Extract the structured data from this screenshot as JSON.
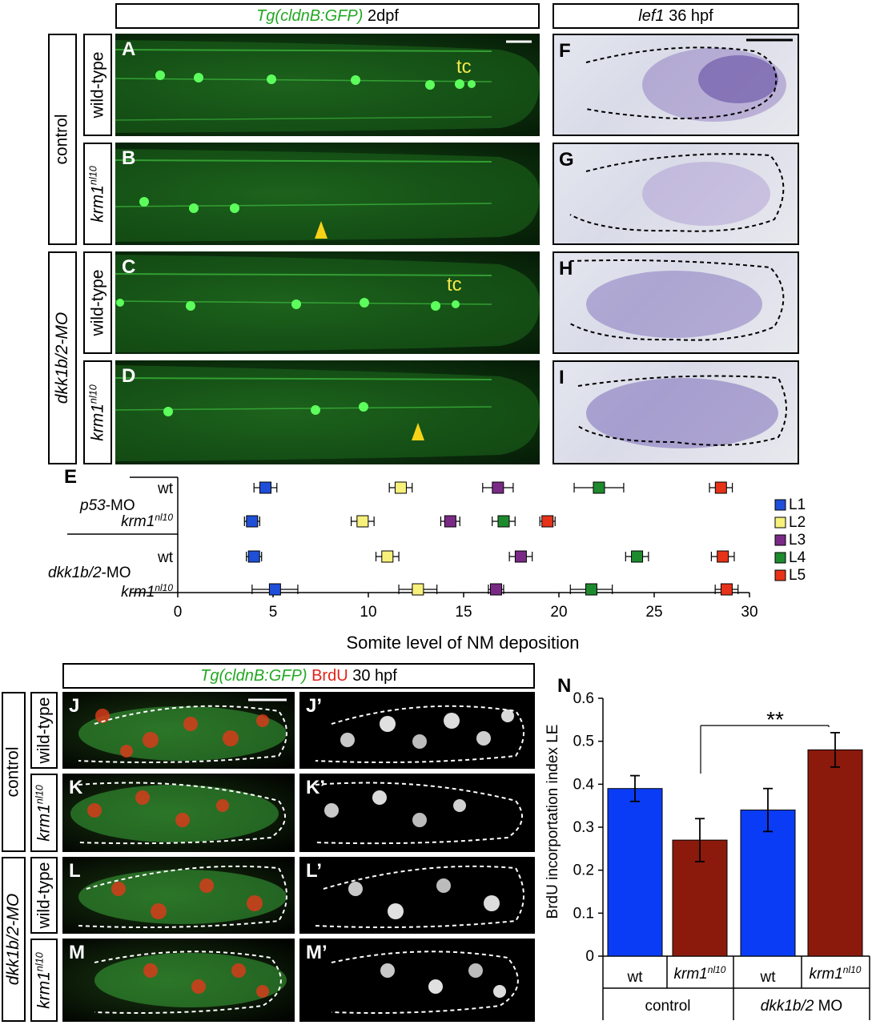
{
  "top": {
    "header_left_gene": "Tg(cldnB:GFP)",
    "header_left_stage": "2dpf",
    "header_right_gene": "lef1",
    "header_right_stage": "36 hpf",
    "group_control": "control",
    "group_mo": "dkk1b/2-MO",
    "row_wt": "wild-type",
    "row_mut": "krm1",
    "row_mut_sup": "nl10",
    "tc_label": "tc",
    "panel_letters": [
      "A",
      "B",
      "C",
      "D",
      "F",
      "G",
      "H",
      "I"
    ]
  },
  "panelE": {
    "letter": "E",
    "group1": "p53-MO",
    "group2": "dkk1b/2-MO",
    "row_wt": "wt",
    "row_mut": "krm1",
    "row_mut_sup": "nl10",
    "xlabel": "Somite level of NM deposition",
    "xticks": [
      0,
      5,
      10,
      15,
      20,
      25,
      30
    ],
    "legend": [
      "L1",
      "L2",
      "L3",
      "L4",
      "L5"
    ],
    "legend_colors": [
      "#1f4fd8",
      "#f7f07a",
      "#7a2a86",
      "#1e8a2e",
      "#e63218"
    ]
  },
  "bottom": {
    "header_gene": "Tg(cldnB:GFP)",
    "header_brdu": "BrdU",
    "header_stage": "30 hpf",
    "group_control": "control",
    "group_mo": "dkk1b/2-MO",
    "row_wt": "wild-type",
    "row_mut": "krm1",
    "row_mut_sup": "nl10",
    "panel_letters": [
      "J",
      "J’",
      "K",
      "K’",
      "L",
      "L’",
      "M",
      "M’"
    ]
  },
  "panelN": {
    "letter": "N",
    "ylabel": "BrdU incorportation index LE",
    "yticks": [
      "0",
      "0.1",
      "0.2",
      "0.3",
      "0.4",
      "0.5",
      "0.6"
    ],
    "bar_labels": [
      "wt",
      "krm1",
      "wt",
      "krm1"
    ],
    "bar_label_sup": "nl10",
    "group1": "control",
    "group2_gene": "dkk1b/2",
    "group2_suffix": "MO",
    "significance": "**"
  },
  "chart_data": [
    {
      "type": "scatter",
      "title": "",
      "xlabel": "Somite level of NM deposition",
      "ylabel": "",
      "xlim": [
        0,
        30
      ],
      "categories": [
        "p53-MO wt",
        "p53-MO krm1 nl10",
        "dkk1b/2-MO wt",
        "dkk1b/2-MO krm1 nl10"
      ],
      "series": [
        {
          "name": "L1",
          "color": "#1f4fd8",
          "values": [
            4.6,
            3.9,
            4.0,
            5.1
          ],
          "errors": [
            0.6,
            0.4,
            0.4,
            1.2
          ]
        },
        {
          "name": "L2",
          "color": "#f7f07a",
          "values": [
            11.7,
            9.7,
            11.0,
            12.6
          ],
          "errors": [
            0.6,
            0.6,
            0.6,
            1.0
          ]
        },
        {
          "name": "L3",
          "color": "#7a2a86",
          "values": [
            16.8,
            14.3,
            18.0,
            16.7
          ],
          "errors": [
            0.8,
            0.5,
            0.6,
            0.4
          ]
        },
        {
          "name": "L4",
          "color": "#1e8a2e",
          "values": [
            22.1,
            17.1,
            24.1,
            21.7
          ],
          "errors": [
            1.3,
            0.6,
            0.6,
            1.1
          ]
        },
        {
          "name": "L5",
          "color": "#e63218",
          "values": [
            28.5,
            19.4,
            28.6,
            28.8
          ],
          "errors": [
            0.6,
            0.4,
            0.6,
            0.6
          ]
        }
      ],
      "legend": "right"
    },
    {
      "type": "bar",
      "title": "",
      "xlabel": "",
      "ylabel": "BrdU incorportation index LE",
      "ylim": [
        0,
        0.6
      ],
      "categories": [
        "control wt",
        "control krm1 nl10",
        "dkk1b/2 MO wt",
        "dkk1b/2 MO krm1 nl10"
      ],
      "values": [
        0.39,
        0.27,
        0.34,
        0.48
      ],
      "errors": [
        0.03,
        0.05,
        0.05,
        0.04
      ],
      "colors": [
        "#0a3cf5",
        "#8b1a0c",
        "#0a3cf5",
        "#8b1a0c"
      ],
      "annotation": "**"
    }
  ]
}
